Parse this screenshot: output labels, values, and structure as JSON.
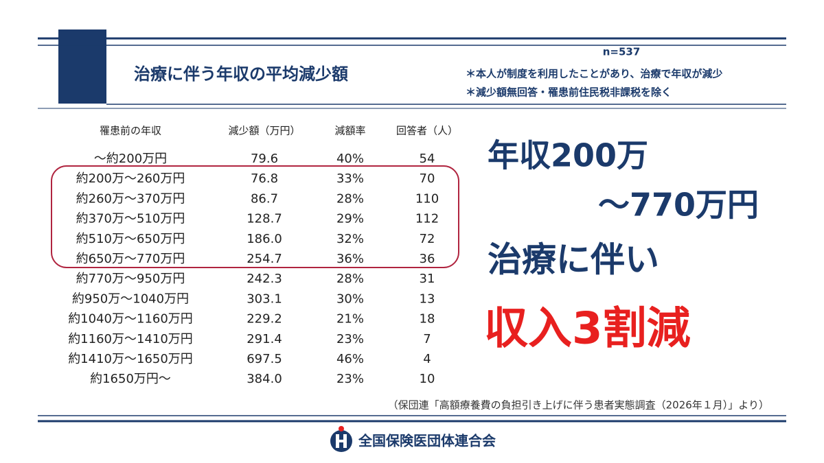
{
  "header": {
    "title": "治療に伴う年収の平均減少額",
    "sample": "n=537",
    "notes": [
      "＊本人が制度を利用したことがあり、治療で年収が減少",
      "＊減少額無回答・罹患前住民税非課税を除く"
    ]
  },
  "table": {
    "columns": [
      "罹患前の年収",
      "減少額（万円）",
      "減額率",
      "回答者（人）"
    ],
    "rows": [
      [
        "～約200万円",
        "79.6",
        "40%",
        "54"
      ],
      [
        "約200万～260万円",
        "76.8",
        "33%",
        "70"
      ],
      [
        "約260万～370万円",
        "86.7",
        "28%",
        "110"
      ],
      [
        "約370万～510万円",
        "128.7",
        "29%",
        "112"
      ],
      [
        "約510万～650万円",
        "186.0",
        "32%",
        "72"
      ],
      [
        "約650万～770万円",
        "254.7",
        "36%",
        "36"
      ],
      [
        "約770万～950万円",
        "242.3",
        "28%",
        "31"
      ],
      [
        "約950万～1040万円",
        "303.1",
        "30%",
        "13"
      ],
      [
        "約1040万～1160万円",
        "229.2",
        "21%",
        "18"
      ],
      [
        "約1160万～1410万円",
        "291.4",
        "23%",
        "7"
      ],
      [
        "約1410万～1650万円",
        "697.5",
        "46%",
        "4"
      ],
      [
        "約1650万円～",
        "384.0",
        "23%",
        "10"
      ]
    ]
  },
  "callout": {
    "lines": [
      "年収200万",
      "～770万円",
      "治療に伴い",
      "収入3割減"
    ]
  },
  "source": "（保団連「高額療養費の負担引き上げに伴う患者実態調査（2026年１月）」より）",
  "footer": {
    "organization": "全国保険医団体連合会"
  }
}
